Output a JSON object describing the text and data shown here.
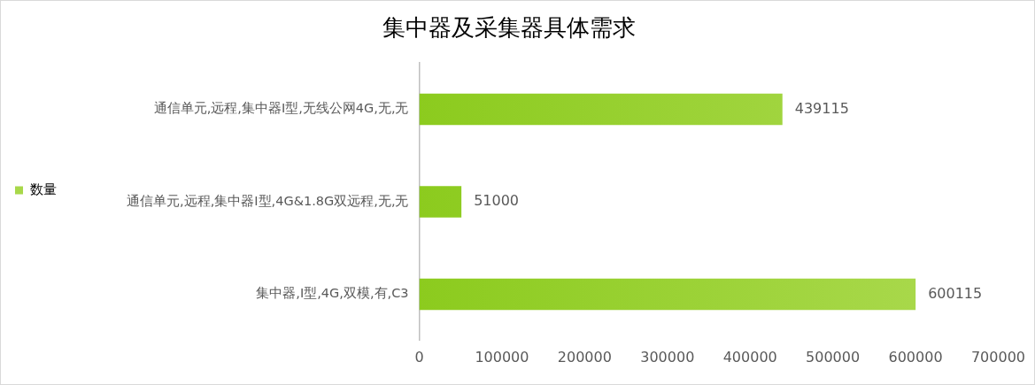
{
  "chart_data": {
    "type": "bar",
    "orientation": "horizontal",
    "title": "集中器及采集器具体需求",
    "categories": [
      "通信单元,远程,集中器I型,无线公网4G,无,无",
      "通信单元,远程,集中器I型,4G&1.8G双远程,无,无",
      "集中器,I型,4G,双模,有,C3"
    ],
    "series": [
      {
        "name": "数量",
        "color": "#a8d84a",
        "values": [
          439115,
          51000,
          600115
        ]
      }
    ],
    "xlim": [
      0,
      700000
    ],
    "xticks": [
      0,
      100000,
      200000,
      300000,
      400000,
      500000,
      600000,
      700000
    ],
    "grid": false,
    "legend": "left",
    "data_labels": true
  }
}
